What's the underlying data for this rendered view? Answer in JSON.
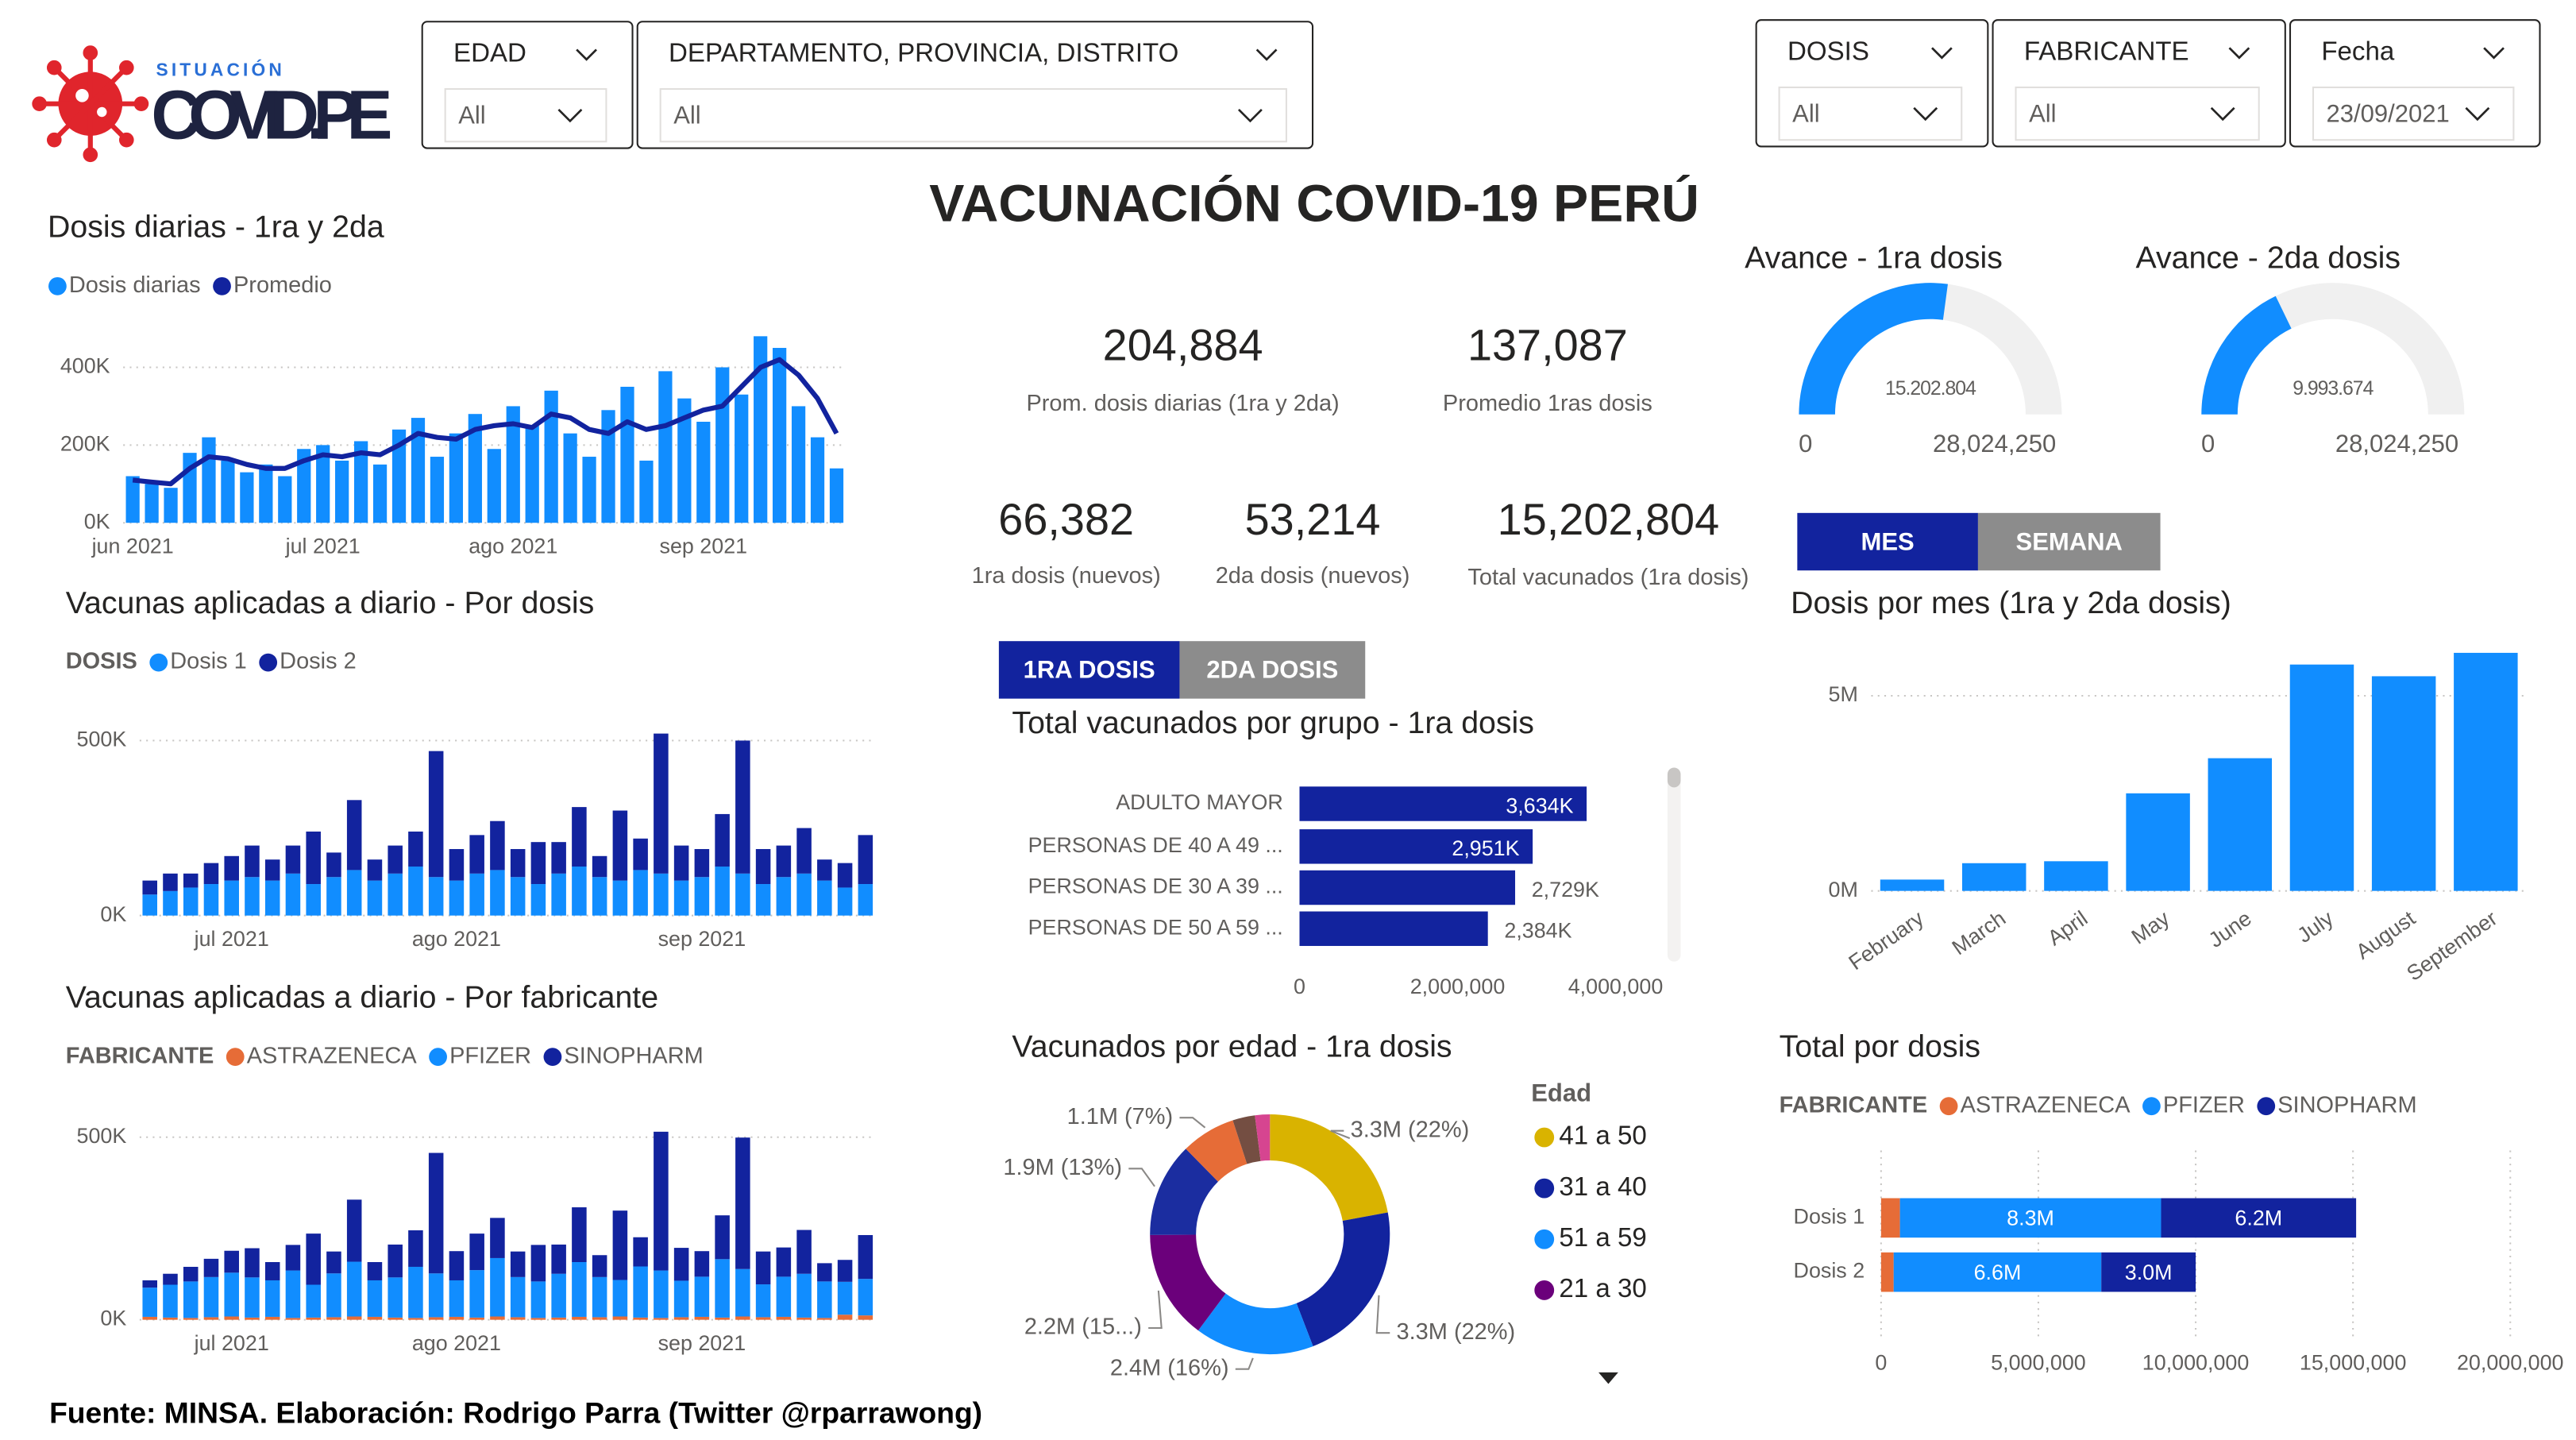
{
  "header": {
    "logo_top": "SITUACIÓN",
    "logo": "COVID.PE",
    "title": "VACUNACIÓN COVID-19 PERÚ",
    "footer": "Fuente: MINSA. Elaboración: Rodrigo Parra (Twitter @rparrawong)"
  },
  "filters": [
    {
      "label": "EDAD",
      "value": "All"
    },
    {
      "label": "DEPARTAMENTO, PROVINCIA, DISTRITO",
      "value": "All"
    },
    {
      "label": "DOSIS",
      "value": "All"
    },
    {
      "label": "FABRICANTE",
      "value": "All"
    },
    {
      "label": "Fecha",
      "value": "23/09/2021"
    }
  ],
  "kpis": [
    {
      "value": "204,884",
      "label": "Prom. dosis diarias (1ra y 2da)"
    },
    {
      "value": "137,087",
      "label": "Promedio 1ras dosis"
    },
    {
      "value": "66,382",
      "label": "1ra dosis (nuevos)"
    },
    {
      "value": "53,214",
      "label": "2da dosis (nuevos)"
    },
    {
      "value": "15,202,804",
      "label": "Total vacunados (1ra dosis)"
    }
  ],
  "buttons": {
    "dosis": [
      "1RA DOSIS",
      "2DA DOSIS"
    ],
    "period": [
      "MES",
      "SEMANA"
    ]
  },
  "chart_data": [
    {
      "type": "combo",
      "title": "Dosis diarias - 1ra y 2da",
      "categories": [
        "jun 2021",
        null,
        null,
        null,
        null,
        null,
        null,
        null,
        null,
        null,
        "jul 2021",
        null,
        null,
        null,
        null,
        null,
        null,
        null,
        null,
        null,
        "ago 2021",
        null,
        null,
        null,
        null,
        null,
        null,
        null,
        null,
        null,
        "sep 2021",
        null,
        null,
        null,
        null,
        null,
        null,
        null
      ],
      "series": [
        {
          "name": "Dosis diarias",
          "color": "#118DFF",
          "mark": "bar",
          "values": [
            120000,
            100000,
            90000,
            180000,
            220000,
            160000,
            130000,
            150000,
            120000,
            190000,
            200000,
            160000,
            210000,
            150000,
            240000,
            270000,
            170000,
            230000,
            280000,
            190000,
            300000,
            250000,
            340000,
            230000,
            170000,
            290000,
            350000,
            160000,
            390000,
            320000,
            260000,
            400000,
            330000,
            480000,
            450000,
            300000,
            220000,
            140000
          ]
        },
        {
          "name": "Promedio",
          "color": "#12239E",
          "mark": "line",
          "values": [
            110000,
            105000,
            100000,
            140000,
            170000,
            165000,
            150000,
            140000,
            140000,
            160000,
            175000,
            170000,
            180000,
            175000,
            200000,
            230000,
            220000,
            215000,
            240000,
            250000,
            255000,
            245000,
            280000,
            270000,
            240000,
            230000,
            260000,
            240000,
            250000,
            270000,
            290000,
            300000,
            350000,
            400000,
            420000,
            380000,
            320000,
            230000
          ]
        }
      ],
      "ylim": [
        0,
        520000
      ],
      "yticks": [
        {
          "value": 0,
          "label": "0K"
        },
        {
          "value": 200000,
          "label": "200K"
        },
        {
          "value": 400000,
          "label": "400K"
        }
      ],
      "grid": true
    },
    {
      "type": "stackedbar",
      "title": "Vacunas aplicadas a diario - Por dosis",
      "legend_title": "DOSIS",
      "categories": [
        null,
        null,
        null,
        null,
        "jul 2021",
        null,
        null,
        null,
        null,
        null,
        null,
        null,
        null,
        null,
        null,
        "ago 2021",
        null,
        null,
        null,
        null,
        null,
        null,
        null,
        null,
        null,
        null,
        null,
        "sep 2021",
        null,
        null,
        null,
        null,
        null,
        null,
        null,
        null
      ],
      "series": [
        {
          "name": "Dosis 1",
          "color": "#118DFF",
          "values": [
            60000,
            70000,
            80000,
            90000,
            100000,
            110000,
            100000,
            120000,
            90000,
            110000,
            130000,
            100000,
            120000,
            140000,
            110000,
            100000,
            120000,
            130000,
            110000,
            90000,
            120000,
            140000,
            110000,
            100000,
            130000,
            120000,
            100000,
            110000,
            140000,
            120000,
            90000,
            110000,
            120000,
            100000,
            80000,
            90000
          ]
        },
        {
          "name": "Dosis 2",
          "color": "#12239E",
          "values": [
            40000,
            50000,
            40000,
            60000,
            70000,
            90000,
            60000,
            80000,
            150000,
            70000,
            200000,
            60000,
            80000,
            100000,
            360000,
            90000,
            110000,
            140000,
            80000,
            120000,
            90000,
            170000,
            60000,
            200000,
            90000,
            400000,
            100000,
            80000,
            150000,
            380000,
            100000,
            90000,
            130000,
            60000,
            70000,
            140000
          ]
        }
      ],
      "ylim": [
        0,
        540000
      ],
      "yticks": [
        {
          "value": 0,
          "label": "0K"
        },
        {
          "value": 500000,
          "label": "500K"
        }
      ],
      "grid": true
    },
    {
      "type": "stackedbar",
      "title": "Vacunas aplicadas a diario - Por fabricante",
      "legend_title": "FABRICANTE",
      "categories": [
        null,
        null,
        null,
        null,
        "jul 2021",
        null,
        null,
        null,
        null,
        null,
        null,
        null,
        null,
        null,
        null,
        "ago 2021",
        null,
        null,
        null,
        null,
        null,
        null,
        null,
        null,
        null,
        null,
        null,
        "sep 2021",
        null,
        null,
        null,
        null,
        null,
        null,
        null,
        null
      ],
      "series": [
        {
          "name": "ASTRAZENECA",
          "color": "#E66C37",
          "values": [
            8000,
            6000,
            5000,
            7000,
            9000,
            6000,
            8000,
            5000,
            6000,
            7000,
            9000,
            8000,
            6000,
            5000,
            7000,
            8000,
            6000,
            9000,
            7000,
            5000,
            6000,
            8000,
            7000,
            9000,
            6000,
            5000,
            7000,
            8000,
            6000,
            9000,
            7000,
            8000,
            6000,
            5000,
            14000,
            12000
          ]
        },
        {
          "name": "PFIZER",
          "color": "#118DFF",
          "values": [
            80000,
            90000,
            100000,
            110000,
            120000,
            110000,
            100000,
            130000,
            90000,
            120000,
            150000,
            100000,
            110000,
            140000,
            120000,
            100000,
            130000,
            160000,
            110000,
            100000,
            120000,
            150000,
            110000,
            100000,
            140000,
            130000,
            100000,
            110000,
            160000,
            130000,
            90000,
            110000,
            120000,
            100000,
            90000,
            100000
          ]
        },
        {
          "name": "SINOPHARM",
          "color": "#12239E",
          "values": [
            20000,
            30000,
            40000,
            50000,
            60000,
            80000,
            50000,
            70000,
            140000,
            60000,
            170000,
            50000,
            90000,
            100000,
            330000,
            80000,
            100000,
            110000,
            70000,
            100000,
            80000,
            150000,
            60000,
            190000,
            80000,
            380000,
            90000,
            70000,
            120000,
            360000,
            90000,
            80000,
            120000,
            50000,
            60000,
            120000
          ]
        }
      ],
      "ylim": [
        0,
        540000
      ],
      "yticks": [
        {
          "value": 0,
          "label": "0K"
        },
        {
          "value": 500000,
          "label": "500K"
        }
      ],
      "grid": true
    },
    {
      "type": "hbar",
      "title": "Total vacunados por grupo - 1ra dosis",
      "categories": [
        "ADULTO MAYOR",
        "PERSONAS DE 40 A 49 ...",
        "PERSONAS DE 30 A 39 ...",
        "PERSONAS DE 50 A 59 ..."
      ],
      "values": [
        3634000,
        2951000,
        2729000,
        2384000
      ],
      "value_labels": [
        "3,634K",
        "2,951K",
        "2,729K",
        "2,384K"
      ],
      "color": "#12239E",
      "xlim": [
        0,
        4200000
      ],
      "xticks": [
        0,
        {
          "value": 2000000,
          "label": "2,000,000"
        },
        {
          "value": 4000000,
          "label": "4,000,000"
        }
      ],
      "grid": false
    },
    {
      "type": "donut",
      "title": "Vacunados por edad - 1ra dosis",
      "legend_title": "Edad",
      "categories": [
        "41 a 50",
        "31 a 40",
        "51 a 59",
        "21 a 30",
        null,
        null,
        null,
        null
      ],
      "values": [
        3.3,
        3.3,
        2.4,
        2.2,
        1.9,
        1.1,
        0.45,
        0.3
      ],
      "value_labels": [
        "3.3M (22%)",
        "3.3M (22%)",
        "2.4M (16%)",
        "2.2M (15...)",
        "1.9M (13%)",
        "1.1M (7%)",
        null,
        null
      ],
      "colors": [
        "#D9B300",
        "#12239E",
        "#118DFF",
        "#6B007B",
        "#1B2DA0",
        "#E66C37",
        "#744E42",
        "#D64590"
      ]
    },
    {
      "type": "gauge",
      "title": "Avance - 1ra dosis",
      "value": 15202804,
      "value_label": "15.202.804",
      "min": 0,
      "max": {
        "value": 28024250,
        "label": "28,024,250"
      },
      "color": "#118DFF",
      "track_color": "#F0F0F0"
    },
    {
      "type": "gauge",
      "title": "Avance - 2da dosis",
      "value": 9993674,
      "value_label": "9.993.674",
      "min": 0,
      "max": {
        "value": 28024250,
        "label": "28,024,250"
      },
      "color": "#118DFF",
      "track_color": "#F0F0F0"
    },
    {
      "type": "bar",
      "title": "Dosis por mes (1ra y 2da dosis)",
      "categories": [
        "February",
        "March",
        "April",
        "May",
        "June",
        "July",
        "August",
        "September"
      ],
      "values": [
        290000,
        710000,
        760000,
        2500000,
        3400000,
        5800000,
        5500000,
        6100000
      ],
      "color": "#118DFF",
      "ylim": [
        0,
        6400000
      ],
      "yticks": [
        {
          "value": 0,
          "label": "0M"
        },
        {
          "value": 5000000,
          "label": "5M"
        }
      ],
      "grid": true
    },
    {
      "type": "stackedhbar",
      "title": "Total por dosis",
      "legend_title": "FABRICANTE",
      "categories": [
        "Dosis 1",
        "Dosis 2"
      ],
      "series": [
        {
          "name": "ASTRAZENECA",
          "color": "#E66C37",
          "values": [
            600000,
            400000
          ],
          "value_labels": [
            null,
            null
          ]
        },
        {
          "name": "PFIZER",
          "color": "#118DFF",
          "values": [
            8300000,
            6600000
          ],
          "value_labels": [
            "8.3M",
            "6.6M"
          ]
        },
        {
          "name": "SINOPHARM",
          "color": "#12239E",
          "values": [
            6200000,
            3000000
          ],
          "value_labels": [
            "6.2M",
            "3.0M"
          ]
        }
      ],
      "xlim": [
        0,
        20000000
      ],
      "xticks": [
        0,
        {
          "value": 5000000,
          "label": "5,000,000"
        },
        {
          "value": 10000000,
          "label": "10,000,000"
        },
        {
          "value": 15000000,
          "label": "15,000,000"
        },
        {
          "value": 20000000,
          "label": "20,000,000"
        }
      ],
      "grid": true
    }
  ]
}
